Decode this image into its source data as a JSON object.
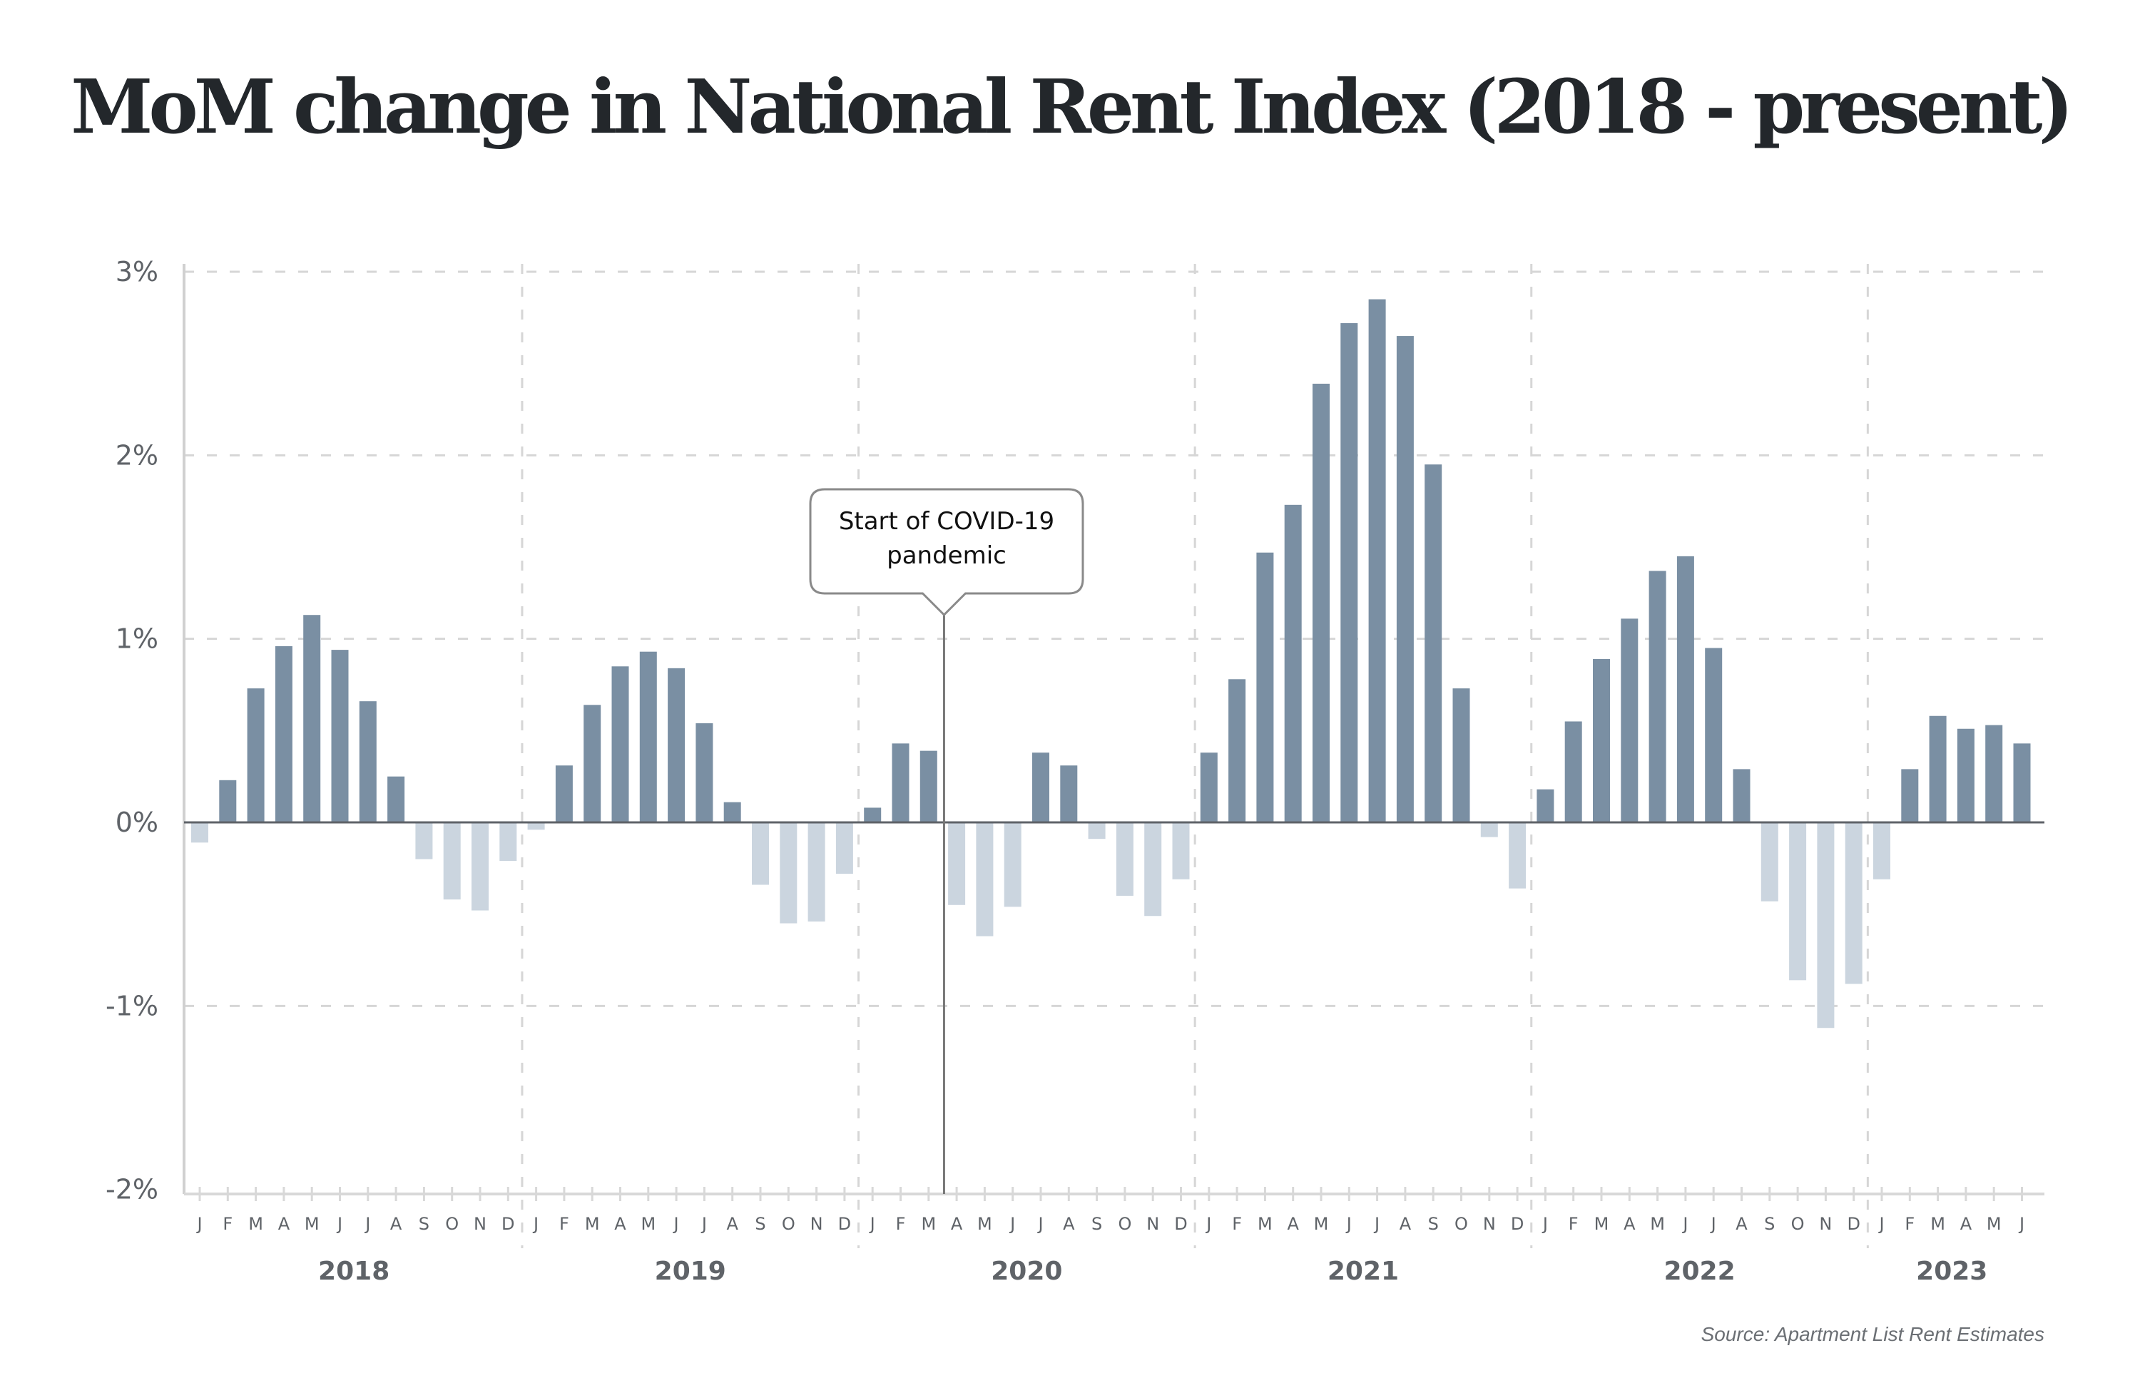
{
  "chart_data": {
    "type": "bar",
    "title": "MoM change in National Rent Index (2018 - present)",
    "xlabel": "",
    "ylabel": "",
    "ylim": [
      -2,
      3
    ],
    "yticks": [
      3,
      2,
      1,
      0,
      -1,
      -2
    ],
    "ytick_labels": [
      "3%",
      "2%",
      "1%",
      "0%",
      "-1%",
      "-2%"
    ],
    "grid": true,
    "legend": "none",
    "positive_color": "#7a8fa3",
    "negative_color": "#cbd5df",
    "years": [
      "2018",
      "2019",
      "2020",
      "2021",
      "2022",
      "2023"
    ],
    "month_labels": [
      "J",
      "F",
      "M",
      "A",
      "M",
      "J",
      "J",
      "A",
      "S",
      "O",
      "N",
      "D"
    ],
    "categories": [
      "2018-01",
      "2018-02",
      "2018-03",
      "2018-04",
      "2018-05",
      "2018-06",
      "2018-07",
      "2018-08",
      "2018-09",
      "2018-10",
      "2018-11",
      "2018-12",
      "2019-01",
      "2019-02",
      "2019-03",
      "2019-04",
      "2019-05",
      "2019-06",
      "2019-07",
      "2019-08",
      "2019-09",
      "2019-10",
      "2019-11",
      "2019-12",
      "2020-01",
      "2020-02",
      "2020-03",
      "2020-04",
      "2020-05",
      "2020-06",
      "2020-07",
      "2020-08",
      "2020-09",
      "2020-10",
      "2020-11",
      "2020-12",
      "2021-01",
      "2021-02",
      "2021-03",
      "2021-04",
      "2021-05",
      "2021-06",
      "2021-07",
      "2021-08",
      "2021-09",
      "2021-10",
      "2021-11",
      "2021-12",
      "2022-01",
      "2022-02",
      "2022-03",
      "2022-04",
      "2022-05",
      "2022-06",
      "2022-07",
      "2022-08",
      "2022-09",
      "2022-10",
      "2022-11",
      "2022-12",
      "2023-01",
      "2023-02",
      "2023-03",
      "2023-04",
      "2023-05",
      "2023-06"
    ],
    "values": [
      -0.11,
      0.23,
      0.73,
      0.96,
      1.13,
      0.94,
      0.66,
      0.25,
      -0.2,
      -0.42,
      -0.48,
      -0.21,
      -0.04,
      0.31,
      0.64,
      0.85,
      0.93,
      0.84,
      0.54,
      0.11,
      -0.34,
      -0.55,
      -0.54,
      -0.28,
      0.08,
      0.43,
      0.39,
      -0.45,
      -0.62,
      -0.46,
      0.38,
      0.31,
      -0.09,
      -0.4,
      -0.51,
      -0.31,
      0.38,
      0.78,
      1.47,
      1.73,
      2.39,
      2.72,
      2.85,
      2.65,
      1.95,
      0.73,
      -0.08,
      -0.36,
      0.18,
      0.55,
      0.89,
      1.11,
      1.37,
      1.45,
      0.95,
      0.29,
      -0.43,
      -0.86,
      -1.12,
      -0.88,
      -0.31,
      0.29,
      0.58,
      0.51,
      0.53,
      0.43
    ],
    "annotations": [
      {
        "text_lines": [
          "Start of COVID-19",
          "pandemic"
        ],
        "at_category": "2020-04"
      }
    ],
    "source": "Source: Apartment List Rent Estimates"
  }
}
